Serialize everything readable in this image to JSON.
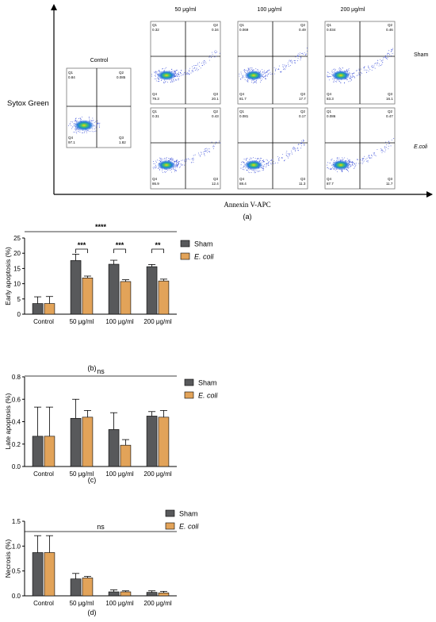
{
  "flow": {
    "y_axis_label": "Sytox Green",
    "x_axis_label": "Annexin V-APC",
    "panel_label": "(a)",
    "control": {
      "title": "Control",
      "q1": {
        "label": "Q1",
        "value": "0.84"
      },
      "q2": {
        "label": "Q2",
        "value": "0.085"
      },
      "q3": {
        "label": "Q3",
        "value": "1.82"
      },
      "q4": {
        "label": "Q4",
        "value": "97.1"
      }
    },
    "columns": [
      "50  μg/ml",
      "100 μg/ml",
      "200 μg/ml"
    ],
    "rows": [
      {
        "label": "Sham",
        "italic": false,
        "plots": [
          {
            "q1": "0.32",
            "q2": "0.34",
            "q3": "20.1",
            "q4": "79.3"
          },
          {
            "q1": "0.069",
            "q2": "0.49",
            "q3": "17.7",
            "q4": "81.7"
          },
          {
            "q1": "0.034",
            "q2": "0.46",
            "q3": "16.1",
            "q4": "83.3"
          }
        ]
      },
      {
        "label": "E.coli",
        "italic": true,
        "plots": [
          {
            "q1": "0.31",
            "q2": "0.43",
            "q3": "12.4",
            "q4": "86.9"
          },
          {
            "q1": "0.081",
            "q2": "0.17",
            "q3": "11.3",
            "q4": "88.4"
          },
          {
            "q1": "0.086",
            "q2": "0.47",
            "q3": "11.7",
            "q4": "87.7"
          }
        ]
      }
    ]
  },
  "chart_data": [
    {
      "type": "bar",
      "panel_label": "(b)",
      "ylabel": "Early apoptosis (%)",
      "ylim": [
        0,
        25
      ],
      "yticks": [
        "0",
        "5",
        "10",
        "15",
        "20",
        "25"
      ],
      "categories": [
        "Control",
        "50 μg/ml",
        "100 μg/ml",
        "200 μg/ml"
      ],
      "series": [
        {
          "name": "Sham",
          "color": "#58595b",
          "values": [
            3.5,
            17.6,
            16.4,
            15.6
          ],
          "errors": [
            2.2,
            2.1,
            1.3,
            0.7
          ]
        },
        {
          "name": "E. coli",
          "color": "#e2a359",
          "values": [
            3.5,
            11.9,
            10.7,
            10.9
          ],
          "errors": [
            2.3,
            0.6,
            0.6,
            0.6
          ]
        }
      ],
      "overall_significance": "****",
      "pair_significance": [
        "",
        "***",
        "***",
        "**"
      ]
    },
    {
      "type": "bar",
      "panel_label": "(c)",
      "ylabel": "Late apoptosis (%)",
      "ylim": [
        0,
        0.8
      ],
      "yticks": [
        "0.0",
        "0.2",
        "0.4",
        "0.6",
        "0.8"
      ],
      "categories": [
        "Control",
        "50 μg/ml",
        "100 μg/ml",
        "200 μg/ml"
      ],
      "series": [
        {
          "name": "Sham",
          "color": "#58595b",
          "values": [
            0.27,
            0.43,
            0.33,
            0.45
          ],
          "errors": [
            0.26,
            0.17,
            0.15,
            0.04
          ]
        },
        {
          "name": "E. coli",
          "color": "#e2a359",
          "values": [
            0.27,
            0.44,
            0.19,
            0.44
          ],
          "errors": [
            0.26,
            0.06,
            0.05,
            0.06
          ]
        }
      ],
      "overall_significance": "ns",
      "pair_significance": [
        "",
        "",
        "",
        ""
      ]
    },
    {
      "type": "bar",
      "panel_label": "(d)",
      "ylabel": "Necrosis (%)",
      "ylim": [
        0,
        1.5
      ],
      "yticks": [
        "0.0",
        "0.5",
        "1.0",
        "1.5"
      ],
      "categories": [
        "Control",
        "50 μg/ml",
        "100 μg/ml",
        "200 μg/ml"
      ],
      "series": [
        {
          "name": "Sham",
          "color": "#58595b",
          "values": [
            0.87,
            0.34,
            0.08,
            0.07
          ],
          "errors": [
            0.34,
            0.11,
            0.04,
            0.03
          ]
        },
        {
          "name": "E. coli",
          "color": "#e2a359",
          "values": [
            0.87,
            0.36,
            0.08,
            0.06
          ],
          "errors": [
            0.34,
            0.03,
            0.02,
            0.03
          ]
        }
      ],
      "overall_significance": "ns",
      "pair_significance": [
        "",
        "",
        "",
        ""
      ]
    }
  ]
}
